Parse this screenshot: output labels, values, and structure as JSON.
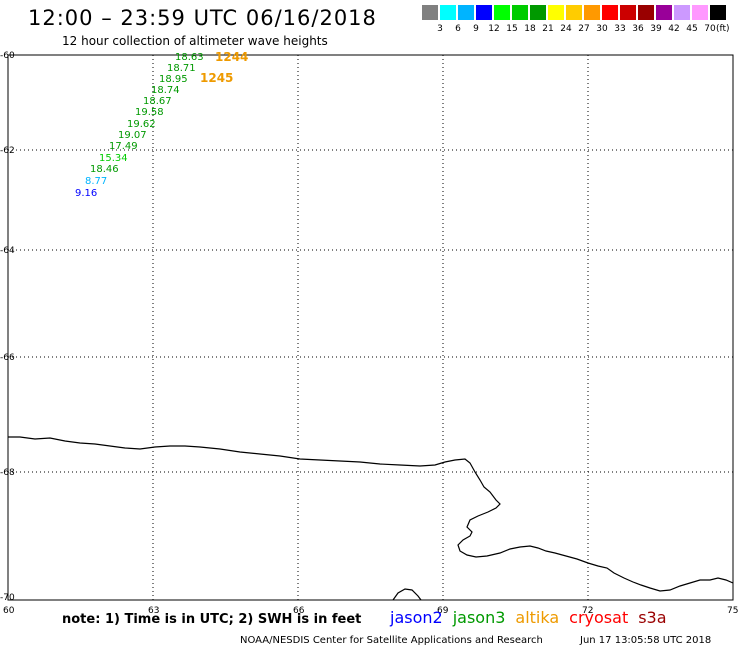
{
  "title": "12:00 – 23:59 UTC 06/16/2018",
  "subtitle": "12 hour collection of altimeter wave heights",
  "legend": {
    "colors": [
      "#808080",
      "#00ffff",
      "#00b4ff",
      "#0000ff",
      "#00ff00",
      "#00cc00",
      "#009900",
      "#ffff00",
      "#ffcc00",
      "#ff9900",
      "#ff0000",
      "#cc0000",
      "#990000",
      "#990099",
      "#cc99ff",
      "#ff99ff",
      "#000000"
    ],
    "ticks": [
      "3",
      "6",
      "9",
      "12",
      "15",
      "18",
      "21",
      "24",
      "27",
      "30",
      "33",
      "36",
      "39",
      "42",
      "45",
      "70"
    ],
    "unit": "(ft)"
  },
  "lat_labels": [
    "-60",
    "-62",
    "-64",
    "-66",
    "-68",
    "-70"
  ],
  "lon_labels": [
    "60",
    "63",
    "66",
    "69",
    "72",
    "75"
  ],
  "measurements": [
    {
      "value": "18.63",
      "color": "#009900"
    },
    {
      "value": "18.71",
      "color": "#009900"
    },
    {
      "value": "18.95",
      "color": "#009900"
    },
    {
      "value": "18.74",
      "color": "#009900"
    },
    {
      "value": "18.67",
      "color": "#009900"
    },
    {
      "value": "19.58",
      "color": "#009900"
    },
    {
      "value": "19.62",
      "color": "#009900"
    },
    {
      "value": "19.07",
      "color": "#009900"
    },
    {
      "value": "17.49",
      "color": "#009900"
    },
    {
      "value": "15.34",
      "color": "#00cc00"
    },
    {
      "value": "18.46",
      "color": "#009900"
    },
    {
      "value": "8.77",
      "color": "#00b4ff"
    },
    {
      "value": "9.16",
      "color": "#0000ff"
    }
  ],
  "passes": [
    "1244",
    "1245"
  ],
  "note": "note: 1) Time is in UTC; 2) SWH is in feet",
  "satellites": [
    {
      "name": "jason2",
      "color": "#0000ff"
    },
    {
      "name": "jason3",
      "color": "#009900"
    },
    {
      "name": "altika",
      "color": "#ee9a00"
    },
    {
      "name": "cryosat",
      "color": "#ff0000"
    },
    {
      "name": "s3a",
      "color": "#990000"
    }
  ],
  "credit": "NOAA/NESDIS Center for Satellite Applications and Research",
  "timestamp": "Jun 17 13:05:58 UTC 2018"
}
